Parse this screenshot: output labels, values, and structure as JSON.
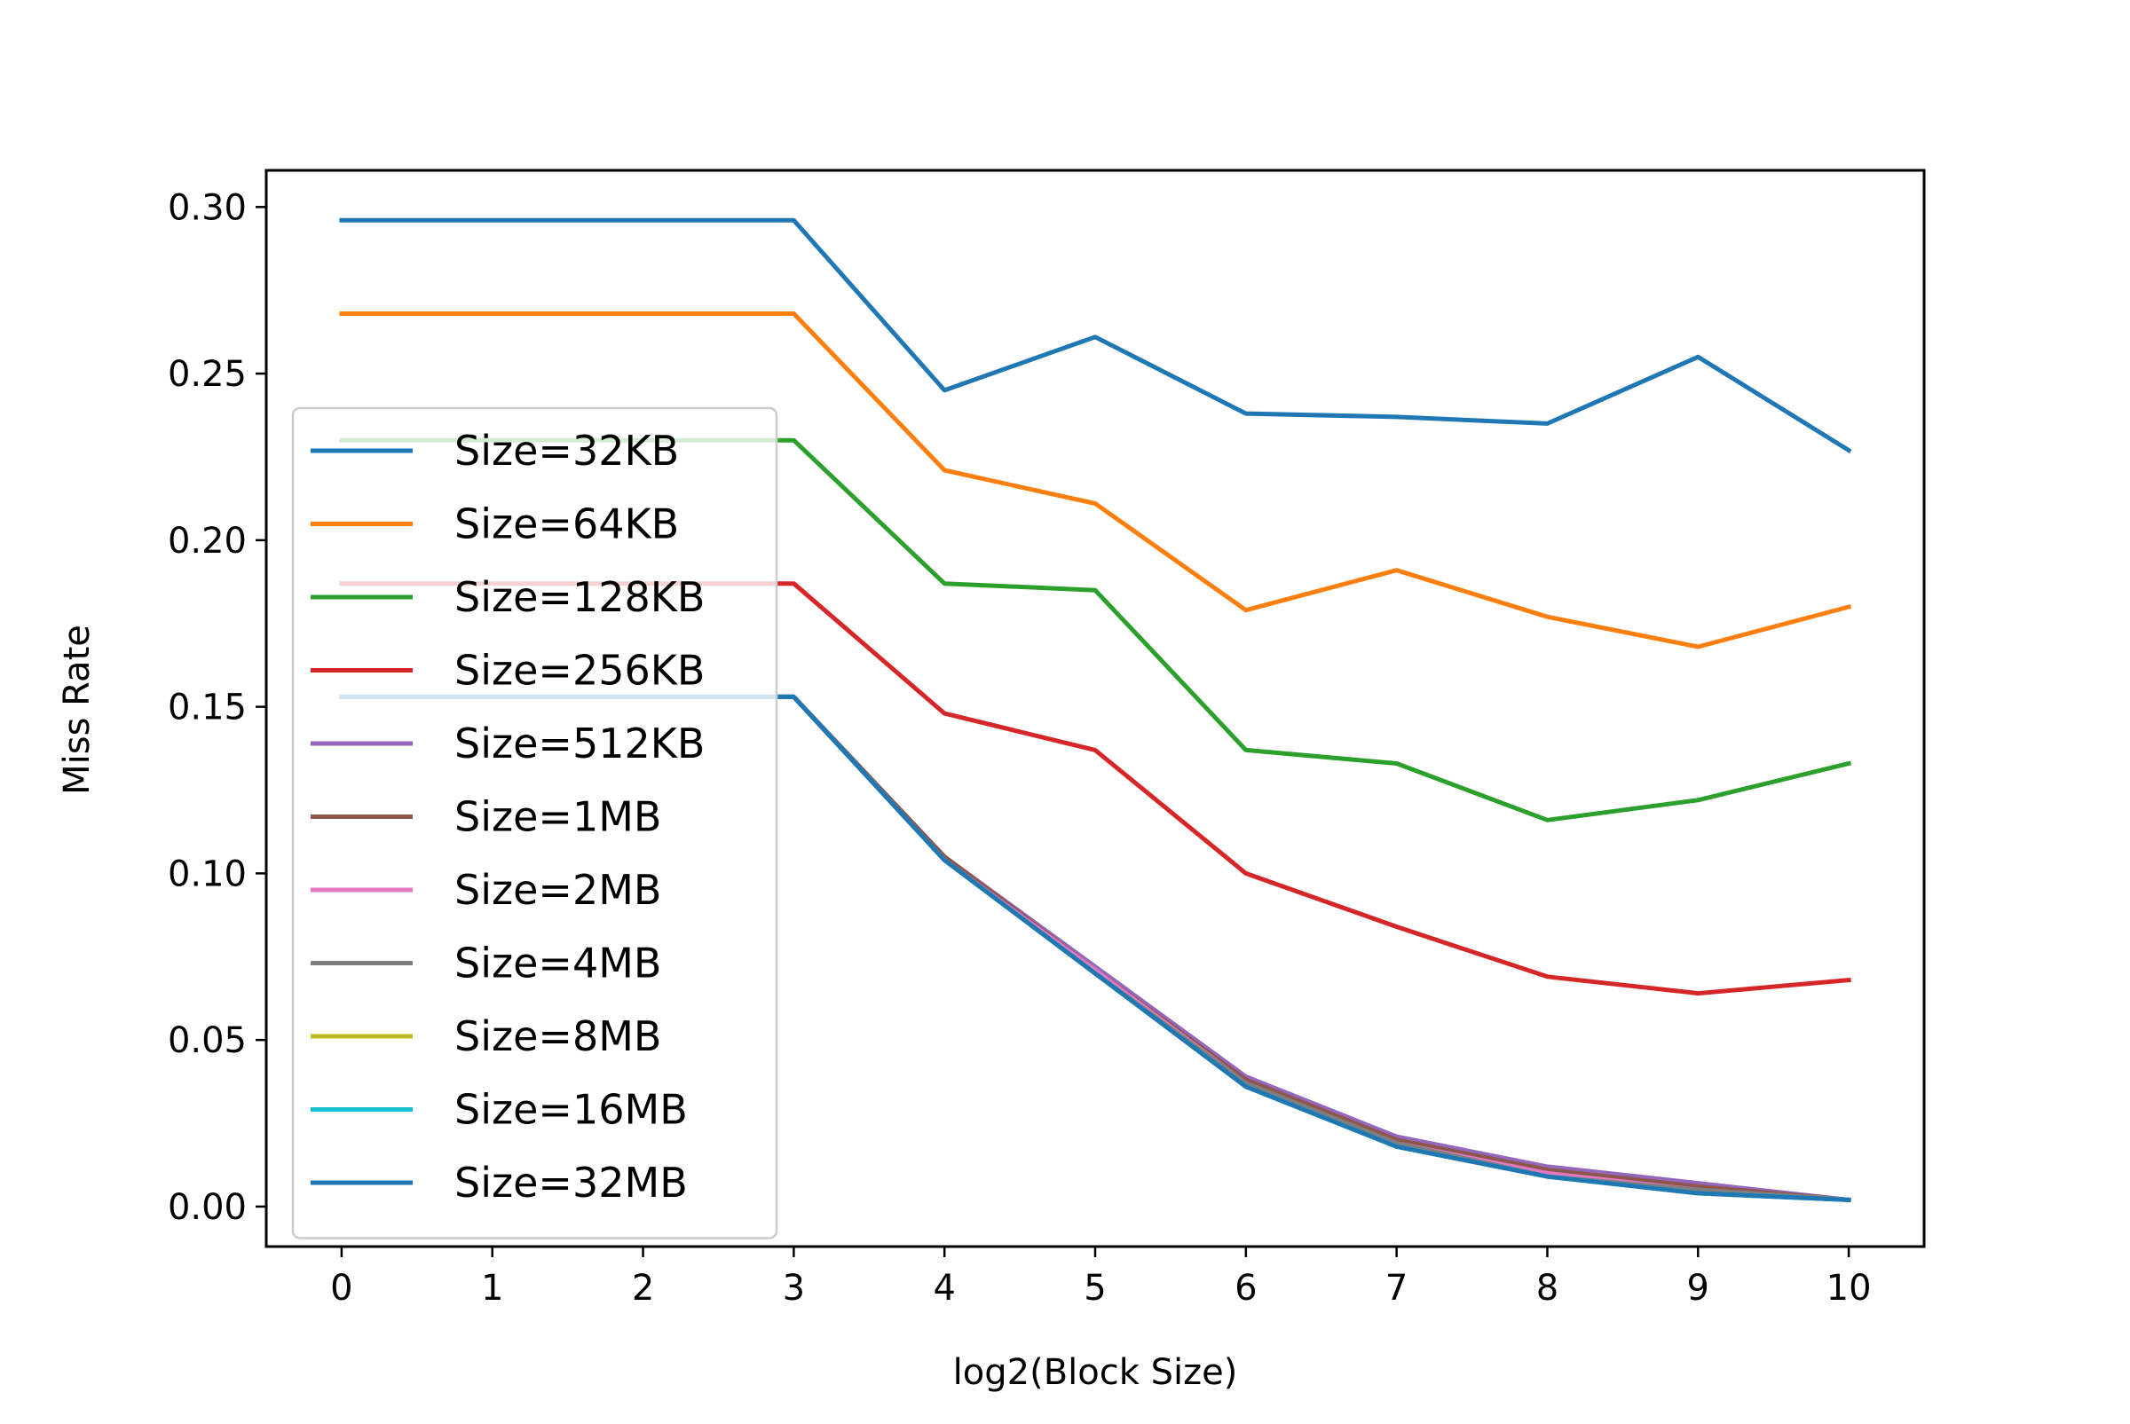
{
  "chart_data": {
    "type": "line",
    "title": "",
    "xlabel": "log2(Block Size)",
    "ylabel": "Miss Rate",
    "xlim": [
      -0.5,
      10.5
    ],
    "ylim": [
      -0.012,
      0.311
    ],
    "x": [
      0,
      1,
      2,
      3,
      4,
      5,
      6,
      7,
      8,
      9,
      10
    ],
    "xticks": [
      "0",
      "1",
      "2",
      "3",
      "4",
      "5",
      "6",
      "7",
      "8",
      "9",
      "10"
    ],
    "yticks": [
      0.0,
      0.05,
      0.1,
      0.15,
      0.2,
      0.25,
      0.3
    ],
    "ytick_labels": [
      "0.00",
      "0.05",
      "0.10",
      "0.15",
      "0.20",
      "0.25",
      "0.30"
    ],
    "grid": false,
    "legend_position": "center-left",
    "series": [
      {
        "name": "Size=32KB",
        "color": "#1f77b4",
        "values": [
          0.296,
          0.296,
          0.296,
          0.296,
          0.245,
          0.261,
          0.238,
          0.237,
          0.235,
          0.255,
          0.227
        ]
      },
      {
        "name": "Size=64KB",
        "color": "#ff7f0e",
        "values": [
          0.268,
          0.268,
          0.268,
          0.268,
          0.221,
          0.211,
          0.179,
          0.191,
          0.177,
          0.168,
          0.18
        ]
      },
      {
        "name": "Size=128KB",
        "color": "#2ca02c",
        "values": [
          0.23,
          0.23,
          0.23,
          0.23,
          0.187,
          0.185,
          0.137,
          0.133,
          0.116,
          0.122,
          0.133
        ]
      },
      {
        "name": "Size=256KB",
        "color": "#d62728",
        "values": [
          0.187,
          0.187,
          0.187,
          0.187,
          0.148,
          0.137,
          0.1,
          0.084,
          0.069,
          0.064,
          0.068
        ]
      },
      {
        "name": "Size=512KB",
        "color": "#9467bd",
        "values": [
          0.153,
          0.153,
          0.153,
          0.153,
          0.105,
          0.072,
          0.039,
          0.021,
          0.012,
          0.007,
          0.002
        ]
      },
      {
        "name": "Size=1MB",
        "color": "#8c564b",
        "values": [
          0.153,
          0.153,
          0.153,
          0.153,
          0.105,
          0.071,
          0.038,
          0.02,
          0.011,
          0.006,
          0.002
        ]
      },
      {
        "name": "Size=2MB",
        "color": "#e377c2",
        "values": [
          0.153,
          0.153,
          0.153,
          0.153,
          0.104,
          0.071,
          0.037,
          0.019,
          0.01,
          0.005,
          0.002
        ]
      },
      {
        "name": "Size=4MB",
        "color": "#7f7f7f",
        "values": [
          0.153,
          0.153,
          0.153,
          0.153,
          0.104,
          0.07,
          0.037,
          0.019,
          0.009,
          0.005,
          0.002
        ]
      },
      {
        "name": "Size=8MB",
        "color": "#bcbd22",
        "values": [
          0.153,
          0.153,
          0.153,
          0.153,
          0.104,
          0.07,
          0.036,
          0.018,
          0.009,
          0.004,
          0.002
        ]
      },
      {
        "name": "Size=16MB",
        "color": "#17becf",
        "values": [
          0.153,
          0.153,
          0.153,
          0.153,
          0.104,
          0.07,
          0.036,
          0.018,
          0.009,
          0.004,
          0.002
        ]
      },
      {
        "name": "Size=32MB",
        "color": "#1f77b4",
        "values": [
          0.153,
          0.153,
          0.153,
          0.153,
          0.104,
          0.07,
          0.036,
          0.018,
          0.009,
          0.004,
          0.002
        ]
      }
    ]
  }
}
